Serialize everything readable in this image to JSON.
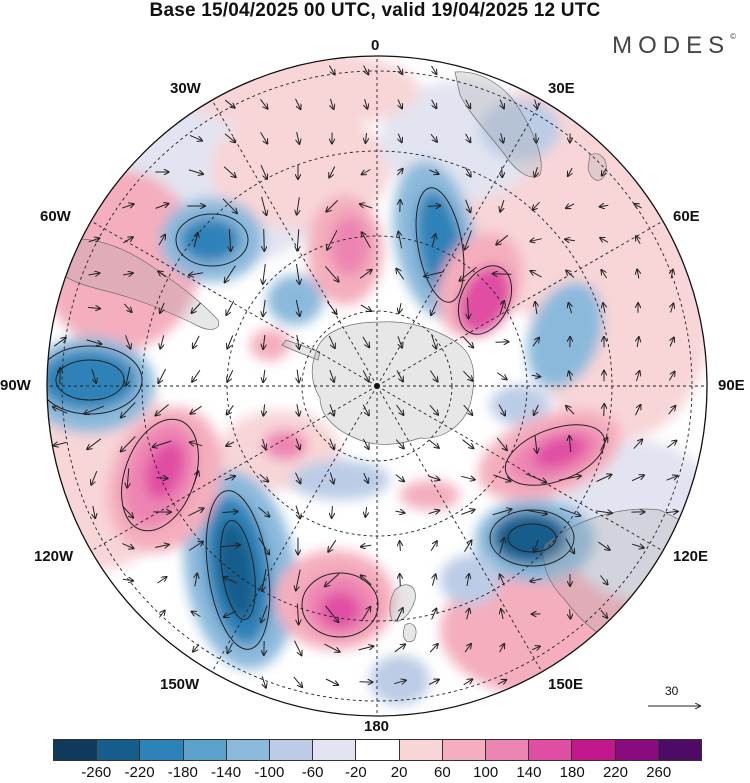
{
  "title": "Base 15/04/2025 00 UTC, valid 19/04/2025 12 UTC",
  "logo": "MODES",
  "logo_mark": "©",
  "map": {
    "type": "polar-stereographic",
    "hemisphere": "south",
    "field": "anomaly contours with wind vectors",
    "longitude_labels": {
      "top": "0",
      "bottom": "180",
      "left": "90W",
      "right": "90E",
      "upper_left_30": "30W",
      "upper_left_60": "60W",
      "upper_right_30": "30E",
      "upper_right_60": "60E",
      "lower_left_120": "120W",
      "lower_left_150": "150W",
      "lower_right_120": "120E",
      "lower_right_150": "150E"
    },
    "reference_vector_label": "30"
  },
  "colorbar": {
    "colors": [
      "#0f3a5c",
      "#165d8c",
      "#2d82b8",
      "#5aa2cc",
      "#8bb9dc",
      "#bccce6",
      "#e2e4f1",
      "#ffffff",
      "#f8d6d8",
      "#f4aebd",
      "#ed85b3",
      "#e04ea3",
      "#c2188b",
      "#8a0a7f",
      "#4d0b66"
    ],
    "ticks": [
      "-260",
      "-220",
      "-180",
      "-140",
      "-100",
      "-60",
      "-20",
      "20",
      "60",
      "100",
      "140",
      "180",
      "220",
      "260"
    ]
  }
}
